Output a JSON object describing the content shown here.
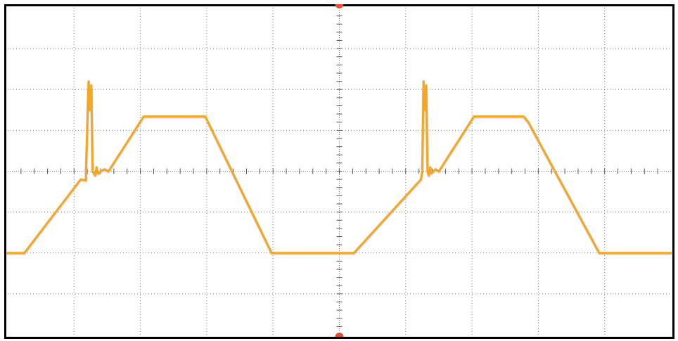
{
  "chart_data": {
    "type": "line",
    "title": "",
    "xlabel": "",
    "ylabel": "",
    "grid": true,
    "xlim": [
      -5,
      5
    ],
    "ylim": [
      -4,
      4
    ],
    "divisions": {
      "x": 10,
      "y": 8
    },
    "minor_ticks_per_division": 5,
    "colors": {
      "trace": "#F5A623",
      "trace_shadow": "#B0B0B0",
      "grid": "#7A7A7A",
      "frame": "#000000",
      "background": "#FFFFFF",
      "trigger_marker": "#E8502A"
    },
    "markers": [
      {
        "name": "trigger-position",
        "x": 0,
        "edges": [
          "top",
          "bottom"
        ]
      }
    ],
    "series": [
      {
        "x": [
          -5.0,
          -4.75,
          -3.9,
          -3.82,
          -3.82,
          -3.78,
          -3.76,
          -3.74,
          -3.72,
          -3.68,
          -3.66,
          -3.64,
          -3.62,
          -3.6,
          -3.54,
          -3.48,
          -2.95,
          -2.78,
          -2.02,
          -1.02,
          0.22,
          1.23,
          1.25,
          1.27,
          1.29,
          1.31,
          1.33,
          1.35,
          1.37,
          1.39,
          1.45,
          1.5,
          2.03,
          2.15,
          2.78,
          2.85,
          3.92,
          5.0
        ],
        "y": [
          -2.0,
          -2.0,
          -0.2,
          -0.22,
          0.0,
          2.2,
          1.5,
          2.1,
          0.0,
          -0.1,
          0.1,
          -0.05,
          -0.05,
          0.0,
          0.05,
          0.0,
          1.34,
          1.34,
          1.34,
          -2.0,
          -2.0,
          -0.2,
          0.0,
          2.2,
          1.5,
          2.1,
          0.0,
          -0.1,
          0.1,
          -0.05,
          0.05,
          0.0,
          1.34,
          1.34,
          1.34,
          1.2,
          -2.0,
          -2.0
        ]
      }
    ]
  }
}
